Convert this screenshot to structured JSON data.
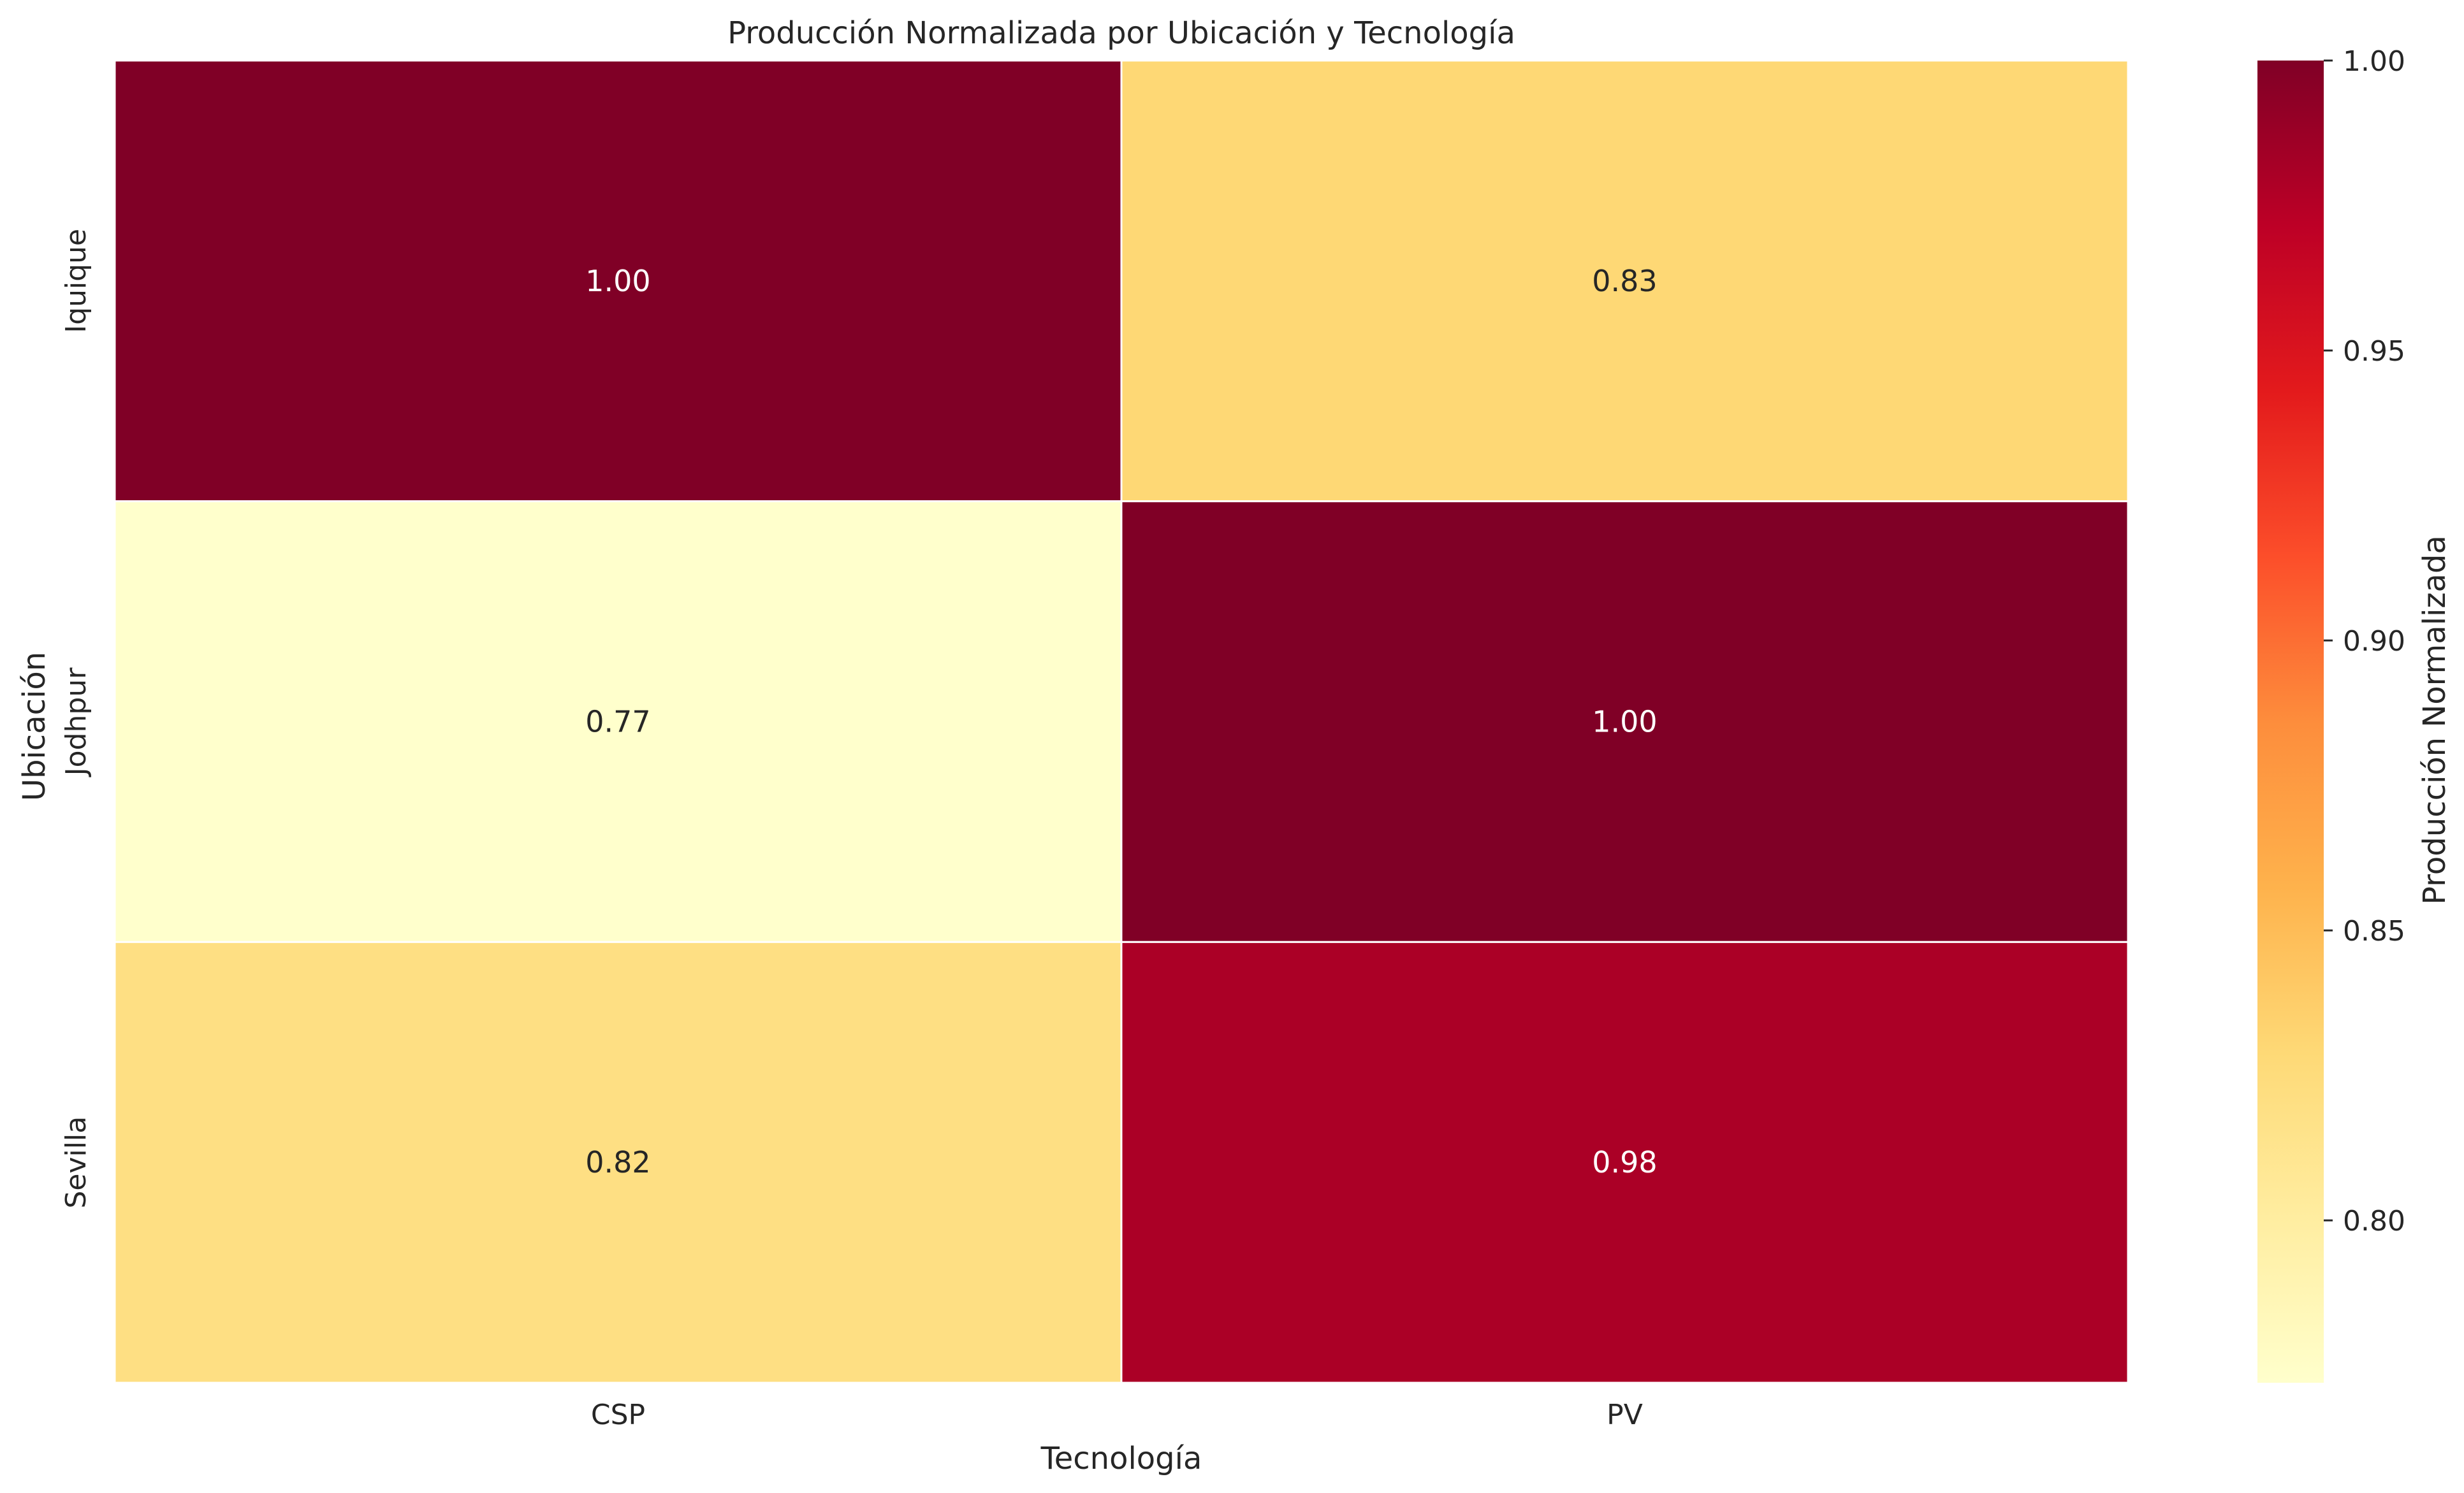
{
  "chart_data": {
    "type": "heatmap",
    "title": "Producción Normalizada por Ubicación y Tecnología",
    "xlabel": "Tecnología",
    "ylabel": "Ubicación",
    "x_categories": [
      "CSP",
      "PV"
    ],
    "y_categories": [
      "Iquique",
      "Jodhpur",
      "Sevilla"
    ],
    "values": [
      [
        1.0,
        0.83
      ],
      [
        0.77,
        1.0
      ],
      [
        0.82,
        0.98
      ]
    ],
    "value_labels": [
      [
        "1.00",
        "0.83"
      ],
      [
        "0.77",
        "1.00"
      ],
      [
        "0.82",
        "0.98"
      ]
    ],
    "colorbar": {
      "label": "Producción Normalizada",
      "range": [
        0.772,
        1.0
      ],
      "ticks": [
        0.8,
        0.85,
        0.9,
        0.95,
        1.0
      ],
      "tick_labels": [
        "0.80",
        "0.85",
        "0.90",
        "0.95",
        "1.00"
      ],
      "colormap": "YlOrRd",
      "colormap_stops": [
        "#ffffcc",
        "#ffeda0",
        "#fed976",
        "#feb24c",
        "#fd8d3c",
        "#fc4e2a",
        "#e31a1c",
        "#bd0026",
        "#800026"
      ]
    },
    "grid": false,
    "cell_border_color": "#ffffff"
  }
}
